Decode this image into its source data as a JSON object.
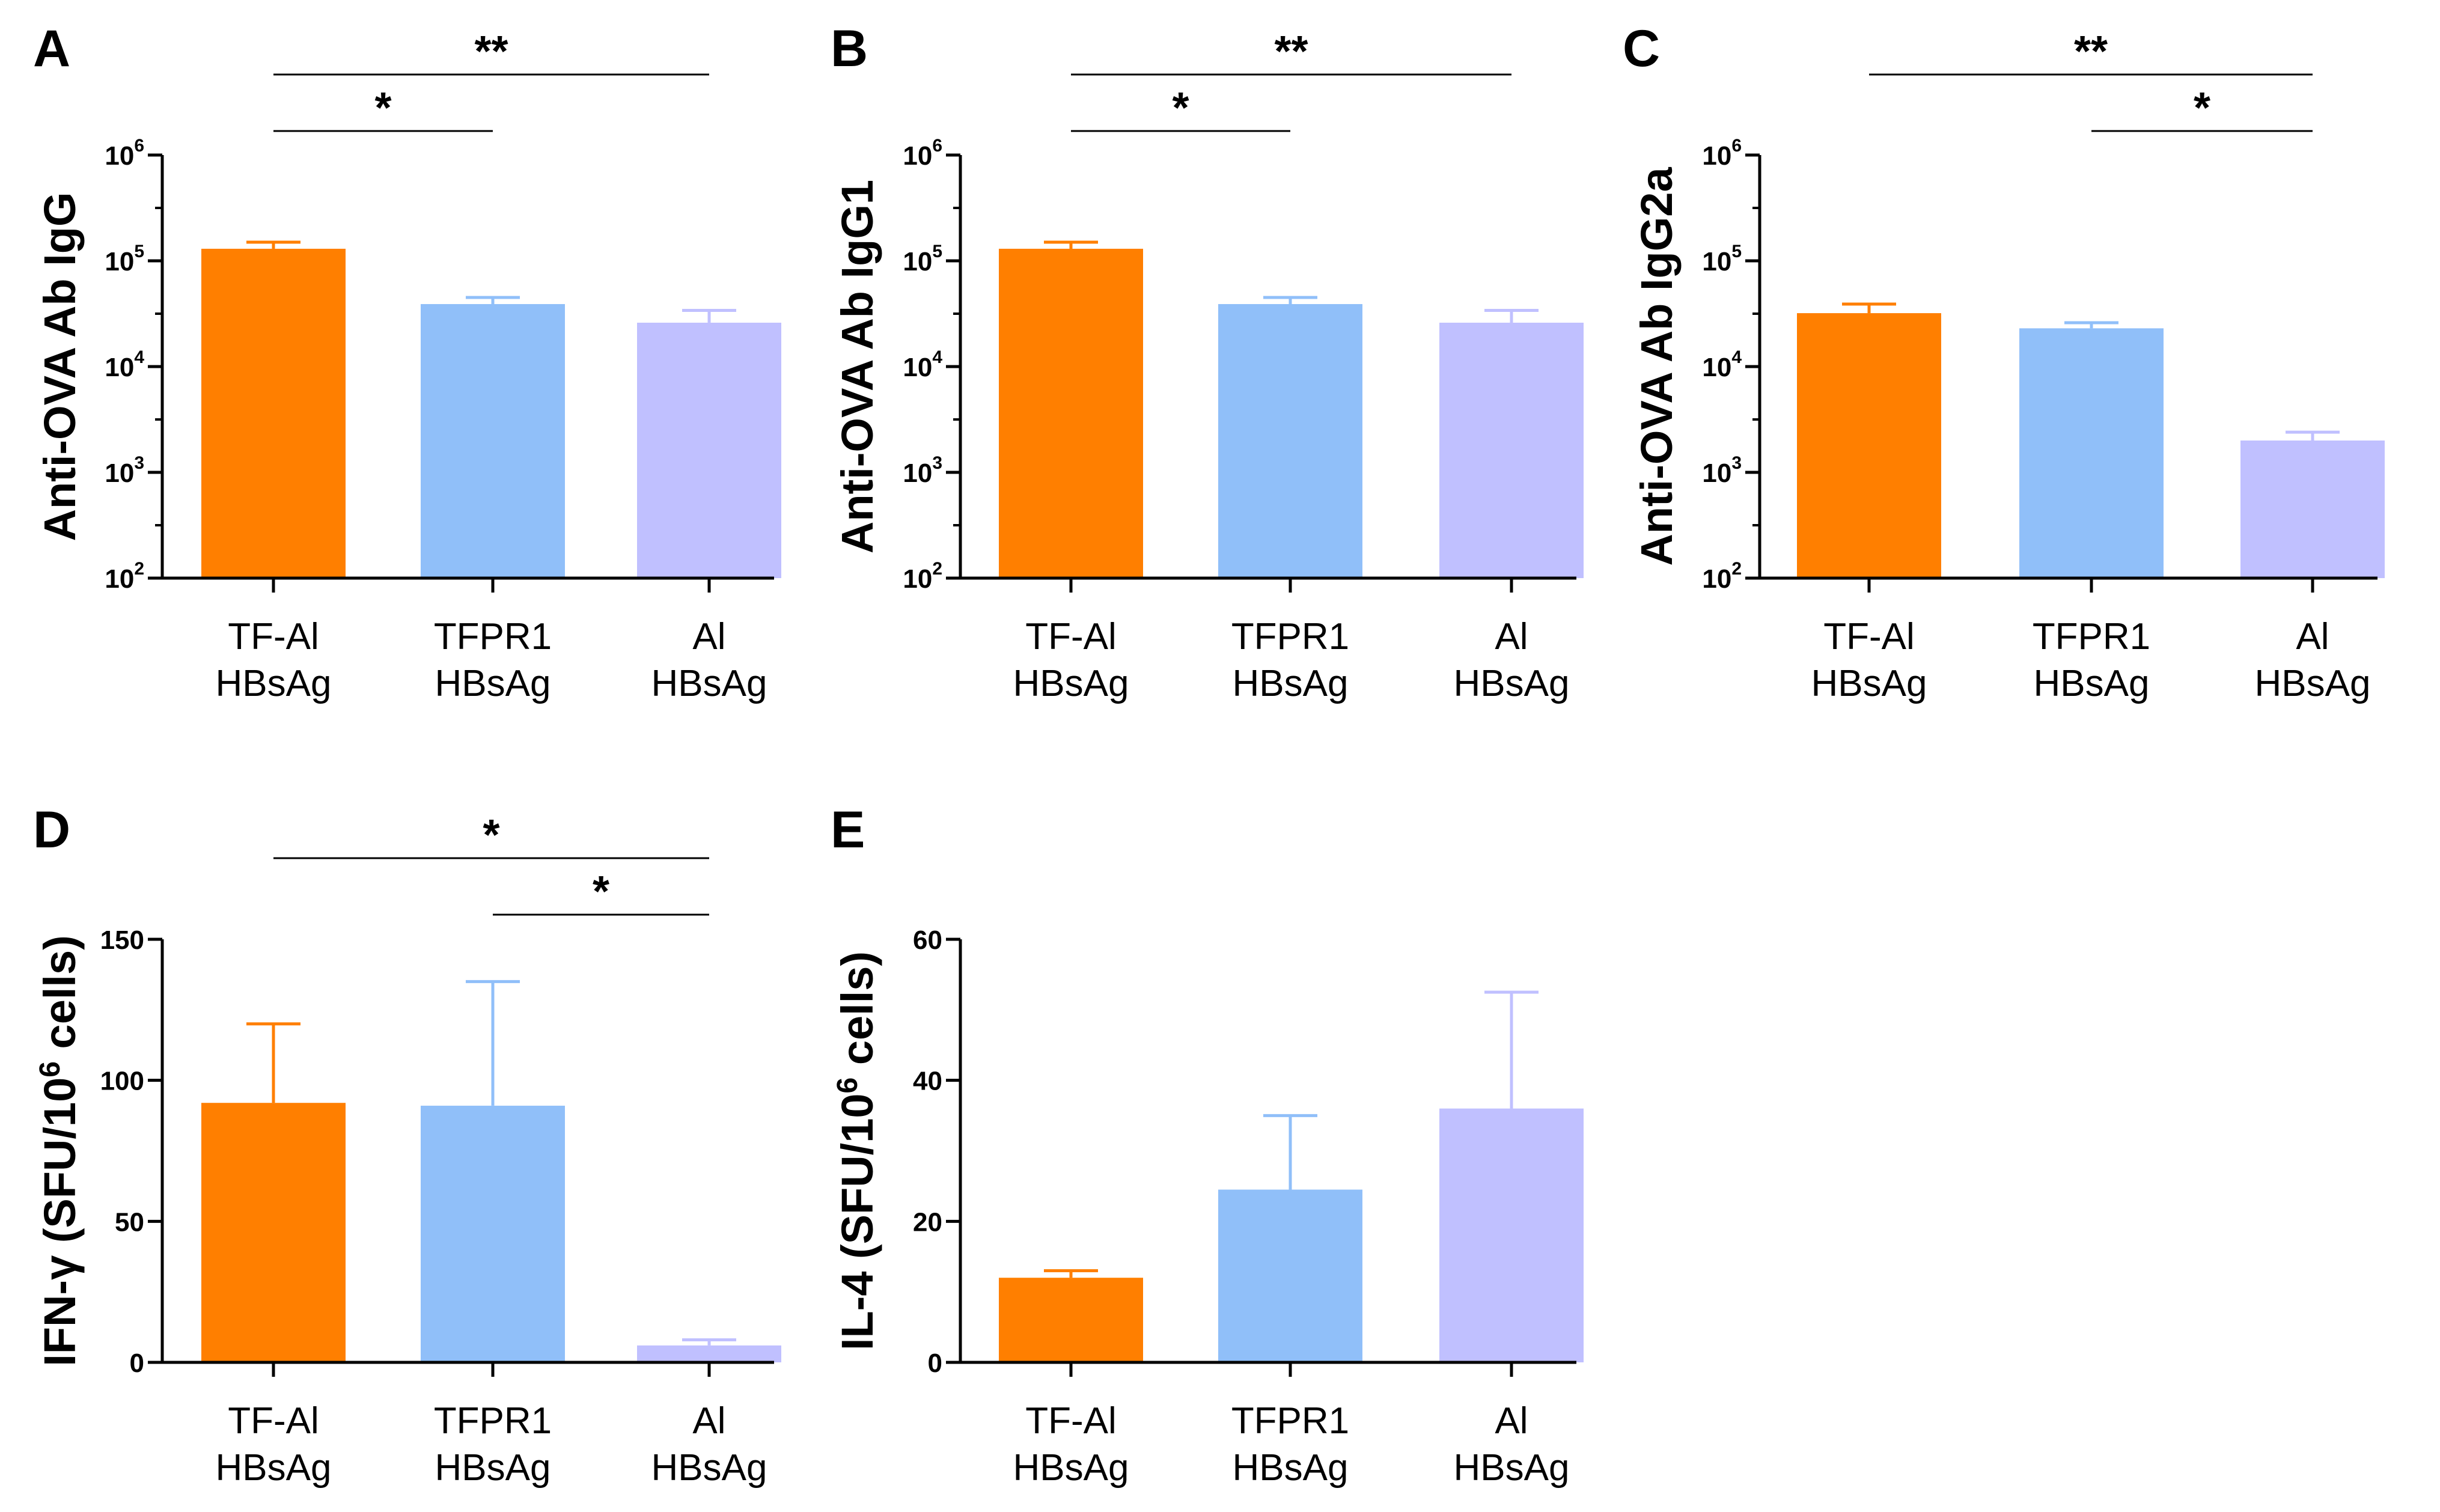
{
  "chart_data": [
    {
      "panel": "A",
      "type": "bar",
      "scale": "log",
      "ylabel": "Anti-OVA Ab IgG",
      "ylim": [
        100,
        1000000
      ],
      "yticks": [
        100,
        1000,
        10000,
        100000,
        1000000
      ],
      "categories": [
        [
          "TF-Al",
          "HBsAg"
        ],
        [
          "TFPR1",
          "HBsAg"
        ],
        [
          "Al",
          "HBsAg"
        ]
      ],
      "values": [
        130000,
        39000,
        26000
      ],
      "errors": [
        150000,
        45000,
        34000
      ],
      "colors": [
        "#ff7f00",
        "#90bff9",
        "#c0c0ff"
      ],
      "significance": [
        {
          "from": 0,
          "to": 2,
          "label": "**"
        },
        {
          "from": 0,
          "to": 1,
          "label": "*"
        }
      ]
    },
    {
      "panel": "B",
      "type": "bar",
      "scale": "log",
      "ylabel": "Anti-OVA Ab IgG1",
      "ylim": [
        100,
        1000000
      ],
      "yticks": [
        100,
        1000,
        10000,
        100000,
        1000000
      ],
      "categories": [
        [
          "TF-Al",
          "HBsAg"
        ],
        [
          "TFPR1",
          "HBsAg"
        ],
        [
          "Al",
          "HBsAg"
        ]
      ],
      "values": [
        130000,
        39000,
        26000
      ],
      "errors": [
        150000,
        45000,
        34000
      ],
      "colors": [
        "#ff7f00",
        "#90bff9",
        "#c0c0ff"
      ],
      "significance": [
        {
          "from": 0,
          "to": 2,
          "label": "**"
        },
        {
          "from": 0,
          "to": 1,
          "label": "*"
        }
      ]
    },
    {
      "panel": "C",
      "type": "bar",
      "scale": "log",
      "ylabel": "Anti-OVA Ab IgG2a",
      "ylim": [
        100,
        1000000
      ],
      "yticks": [
        100,
        1000,
        10000,
        100000,
        1000000
      ],
      "categories": [
        [
          "TF-Al",
          "HBsAg"
        ],
        [
          "TFPR1",
          "HBsAg"
        ],
        [
          "Al",
          "HBsAg"
        ]
      ],
      "values": [
        32000,
        23000,
        2000
      ],
      "errors": [
        39000,
        26000,
        2400
      ],
      "colors": [
        "#ff7f00",
        "#90bff9",
        "#c0c0ff"
      ],
      "significance": [
        {
          "from": 0,
          "to": 2,
          "label": "**"
        },
        {
          "from": 1,
          "to": 2,
          "label": "*"
        }
      ]
    },
    {
      "panel": "D",
      "type": "bar",
      "scale": "linear",
      "ylabel": "IFN-γ  (SFU/10⁶ cells)",
      "ylim": [
        0,
        150
      ],
      "yticks": [
        0,
        50,
        100,
        150
      ],
      "categories": [
        [
          "TF-Al",
          "HBsAg"
        ],
        [
          "TFPR1",
          "HBsAg"
        ],
        [
          "Al",
          "HBsAg"
        ]
      ],
      "values": [
        92,
        91,
        6
      ],
      "errors": [
        120,
        135,
        8
      ],
      "colors": [
        "#ff7f00",
        "#90bff9",
        "#c0c0ff"
      ],
      "significance": [
        {
          "from": 0,
          "to": 2,
          "label": "*"
        },
        {
          "from": 1,
          "to": 2,
          "label": "*"
        }
      ]
    },
    {
      "panel": "E",
      "type": "bar",
      "scale": "linear",
      "ylabel": "IL-4  (SFU/10⁶ cells)",
      "ylim": [
        0,
        60
      ],
      "yticks": [
        0,
        20,
        40,
        60
      ],
      "categories": [
        [
          "TF-Al",
          "HBsAg"
        ],
        [
          "TFPR1",
          "HBsAg"
        ],
        [
          "Al",
          "HBsAg"
        ]
      ],
      "values": [
        12,
        24.5,
        36
      ],
      "errors": [
        13,
        35,
        52.5
      ],
      "colors": [
        "#ff7f00",
        "#90bff9",
        "#c0c0ff"
      ],
      "significance": []
    }
  ]
}
